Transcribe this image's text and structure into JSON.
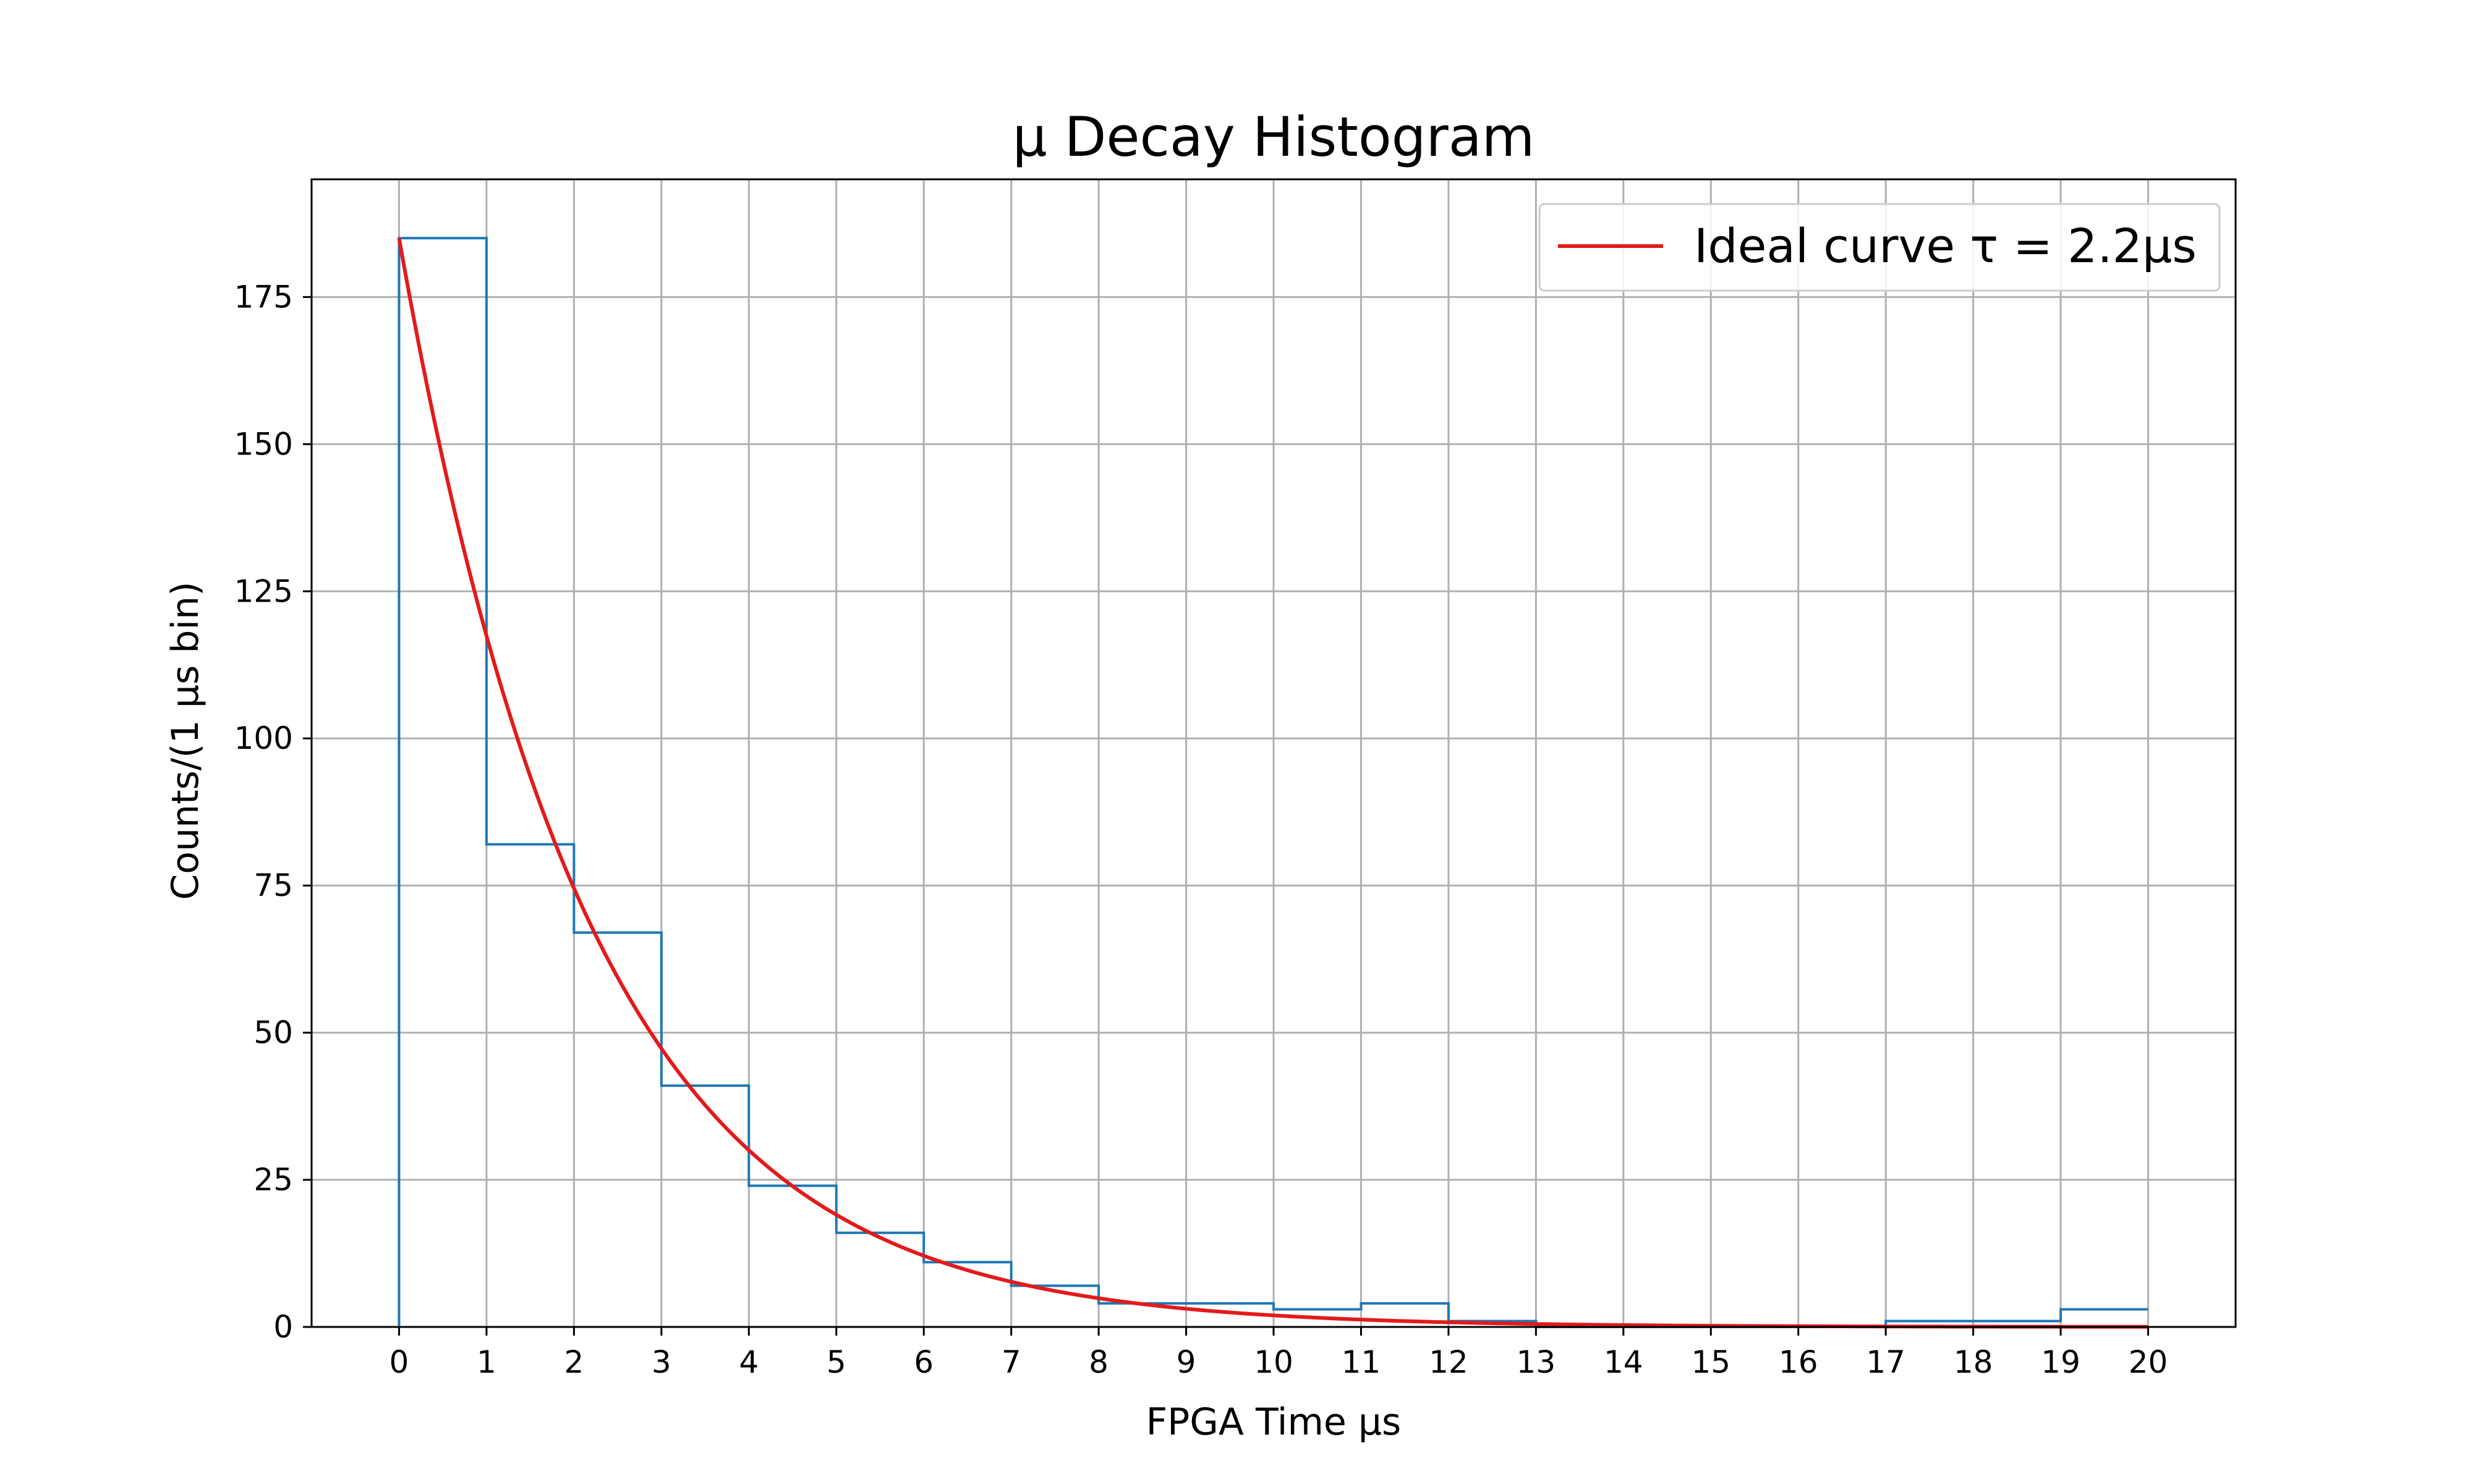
{
  "chart_data": {
    "type": "histogram",
    "title": "μ Decay Histogram",
    "xlabel": "FPGA Time μs",
    "ylabel": "Counts/(1 μs bin)",
    "xlim": [
      -1,
      21
    ],
    "ylim": [
      0,
      195
    ],
    "x_ticks": [
      0,
      1,
      2,
      3,
      4,
      5,
      6,
      7,
      8,
      9,
      10,
      11,
      12,
      13,
      14,
      15,
      16,
      17,
      18,
      19,
      20
    ],
    "y_ticks": [
      0,
      25,
      50,
      75,
      100,
      125,
      150,
      175
    ],
    "grid": true,
    "legend_placement": "top-right",
    "bin_edges": [
      0,
      1,
      2,
      3,
      4,
      5,
      6,
      7,
      8,
      9,
      10,
      11,
      12,
      13,
      14,
      15,
      16,
      17,
      18,
      19,
      20
    ],
    "series": [
      {
        "kind": "histogram-step",
        "color": "#1f77b4",
        "values": [
          185,
          82,
          67,
          41,
          24,
          16,
          11,
          7,
          4,
          4,
          3,
          4,
          1,
          0,
          0,
          0,
          0,
          1,
          1,
          3
        ]
      },
      {
        "kind": "line",
        "name": "Ideal curve τ = 2.2μs",
        "color": "#e31a1c",
        "function": "N0*exp(-t/tau)",
        "N0": 185,
        "tau": 2.2,
        "x_range": [
          0,
          20
        ]
      }
    ]
  }
}
